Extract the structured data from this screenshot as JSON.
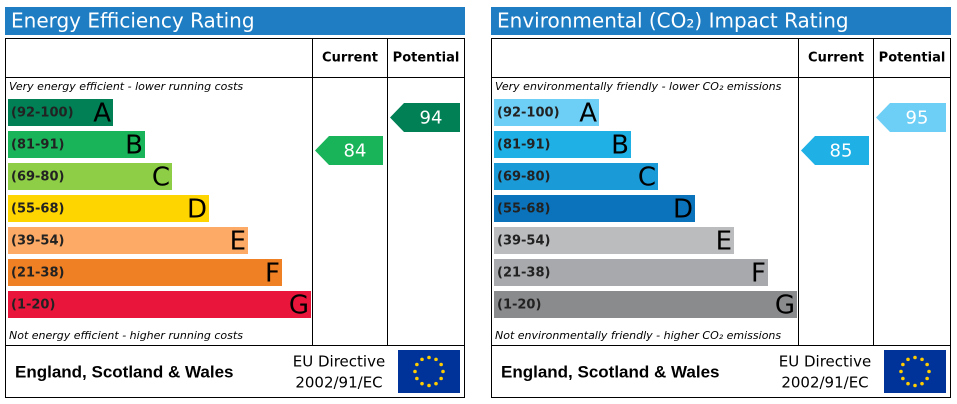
{
  "panels": [
    {
      "title": "Energy Efficiency Rating",
      "headers": [
        "Current",
        "Potential"
      ],
      "top_note": "Very energy efficient - lower running costs",
      "bottom_note": "Not energy efficient - higher running costs",
      "bands": [
        {
          "range": "(92-100)",
          "letter": "A",
          "color": "#008054"
        },
        {
          "range": "(81-91)",
          "letter": "B",
          "color": "#19b459"
        },
        {
          "range": "(69-80)",
          "letter": "C",
          "color": "#8dce46"
        },
        {
          "range": "(55-68)",
          "letter": "D",
          "color": "#ffd500"
        },
        {
          "range": "(39-54)",
          "letter": "E",
          "color": "#fcaa65"
        },
        {
          "range": "(21-38)",
          "letter": "F",
          "color": "#ef8023"
        },
        {
          "range": "(1-20)",
          "letter": "G",
          "color": "#e9153b"
        }
      ],
      "current": 84,
      "potential": 94,
      "footer": "England, Scotland & Wales",
      "directive": [
        "EU Directive",
        "2002/91/EC"
      ]
    },
    {
      "title": "Environmental (CO₂) Impact Rating",
      "headers": [
        "Current",
        "Potential"
      ],
      "top_note": "Very environmentally friendly - lower CO₂ emissions",
      "bottom_note": "Not environmentally friendly - higher CO₂ emissions",
      "bands": [
        {
          "range": "(92-100)",
          "letter": "A",
          "color": "#6ecff6"
        },
        {
          "range": "(81-91)",
          "letter": "B",
          "color": "#1fb1e6"
        },
        {
          "range": "(69-80)",
          "letter": "C",
          "color": "#1b9ad8"
        },
        {
          "range": "(55-68)",
          "letter": "D",
          "color": "#0b73bb"
        },
        {
          "range": "(39-54)",
          "letter": "E",
          "color": "#bbbcbe"
        },
        {
          "range": "(21-38)",
          "letter": "F",
          "color": "#a7a9ac"
        },
        {
          "range": "(1-20)",
          "letter": "G",
          "color": "#8a8b8d"
        }
      ],
      "current": 85,
      "potential": 95,
      "footer": "England, Scotland & Wales",
      "directive": [
        "EU Directive",
        "2002/91/EC"
      ]
    }
  ]
}
